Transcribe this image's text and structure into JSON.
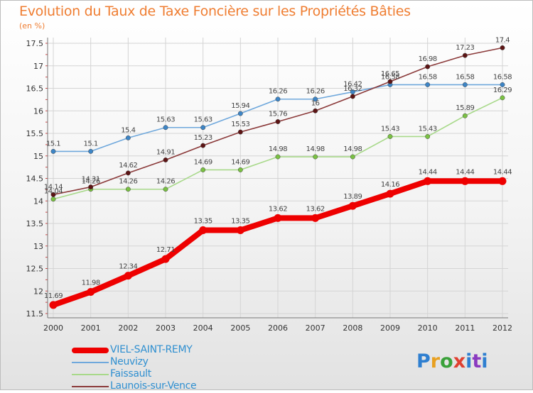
{
  "header": {
    "title": "Evolution du Taux de Taxe Foncière sur les Propriétés Bâties",
    "unit": "(en %)"
  },
  "brand": {
    "logo_text": "Proxiti"
  },
  "colors": {
    "title": "#ef7d31",
    "legend_text": "#2f8fd0",
    "grid": "#d4d4d4",
    "axis": "#777777",
    "tick_text": "#333333",
    "value_label": "#444444"
  },
  "chart_data": {
    "type": "line",
    "x": [
      2000,
      2001,
      2002,
      2003,
      2004,
      2005,
      2006,
      2007,
      2008,
      2009,
      2010,
      2011,
      2012
    ],
    "xlabel": "",
    "ylabel": "",
    "ylim": [
      11.5,
      17.5
    ],
    "yticks": [
      11.5,
      12,
      12.5,
      13,
      13.5,
      14,
      14.5,
      15,
      15.5,
      16,
      16.5,
      17,
      17.5
    ],
    "grid": true,
    "legend": "bottom-left",
    "series": [
      {
        "name": "VIEL-SAINT-REMY",
        "color": "#ee0000",
        "marker": "#ee0000",
        "emphasis": true,
        "values": [
          11.69,
          11.98,
          12.34,
          12.71,
          13.35,
          13.35,
          13.62,
          13.62,
          13.89,
          14.16,
          14.44,
          14.44,
          14.44
        ]
      },
      {
        "name": "Neuvizy",
        "color": "#6fa8dc",
        "marker": "#3d85c6",
        "emphasis": false,
        "values": [
          15.1,
          15.1,
          15.4,
          15.63,
          15.63,
          15.94,
          16.26,
          16.26,
          16.42,
          16.58,
          16.58,
          16.58,
          16.58
        ]
      },
      {
        "name": "Faissault",
        "color": "#a8d98a",
        "marker": "#7ac143",
        "emphasis": false,
        "values": [
          14.04,
          14.26,
          14.26,
          14.26,
          14.69,
          14.69,
          14.98,
          14.98,
          14.98,
          15.43,
          15.43,
          15.89,
          16.29
        ]
      },
      {
        "name": "Launois-sur-Vence",
        "color": "#8b3a3a",
        "marker": "#5c1414",
        "emphasis": false,
        "values": [
          14.14,
          14.31,
          14.62,
          14.91,
          15.23,
          15.53,
          15.76,
          16,
          16.32,
          16.65,
          16.98,
          17.23,
          17.4
        ]
      }
    ]
  }
}
